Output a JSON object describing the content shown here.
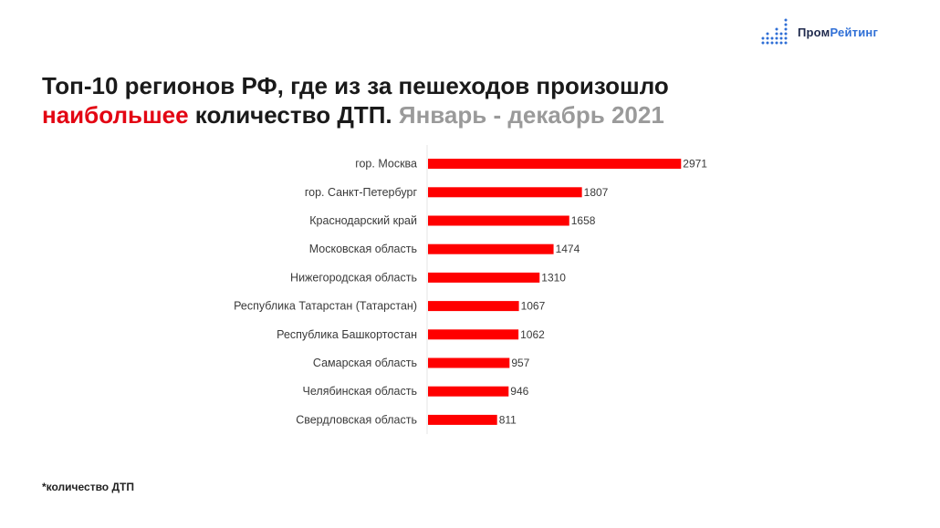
{
  "logo": {
    "part1": "Пром",
    "part2": "Рейтинг",
    "icon": "dot-matrix-bars-icon"
  },
  "title": {
    "line1": "Топ-10 регионов РФ, где из за пешеходов произошло",
    "highlight": "наибольшее",
    "rest": " количество ДТП.",
    "period": "Январь - декабрь 2021"
  },
  "footnote": "*количество ДТП",
  "colors": {
    "bar": "#ff0000",
    "highlight": "#e30613",
    "period": "#9a9a9a",
    "logo_blue": "#2f6fd6",
    "logo_dark": "#1f2a4d"
  },
  "chart_data": {
    "type": "bar",
    "orientation": "horizontal",
    "categories": [
      "гор. Москва",
      "гор. Санкт-Петербург",
      "Краснодарский край",
      "Московская область",
      "Нижегородская область",
      "Республика Татарстан (Татарстан)",
      "Республика Башкортостан",
      "Самарская область",
      "Челябинская область",
      "Свердловская область"
    ],
    "values": [
      2971,
      1807,
      1658,
      1474,
      1310,
      1067,
      1062,
      957,
      946,
      811
    ],
    "xlim": [
      0,
      3000
    ],
    "grid": false,
    "legend": "none"
  }
}
